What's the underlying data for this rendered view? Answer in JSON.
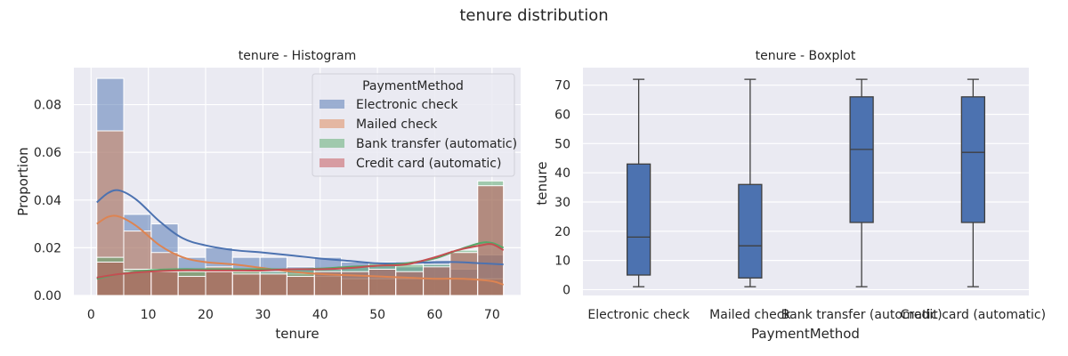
{
  "suptitle": "tenure distribution",
  "chart_data": [
    {
      "type": "histogram",
      "title": "tenure - Histogram",
      "xlabel": "tenure",
      "ylabel": "Proportion",
      "xlim": [
        -3,
        75
      ],
      "ylim": [
        0,
        0.0955
      ],
      "xticks": [
        0,
        10,
        20,
        30,
        40,
        50,
        60,
        70
      ],
      "yticks": [
        0,
        0.02,
        0.04,
        0.06,
        0.08
      ],
      "ytick_labels": [
        "0.00",
        "0.02",
        "0.04",
        "0.06",
        "0.08"
      ],
      "grid": true,
      "bin_edges": [
        1,
        5.7,
        10.5,
        15.2,
        20,
        24.7,
        29.5,
        34.2,
        39,
        43.7,
        48.5,
        53.2,
        58,
        62.7,
        67.5,
        72
      ],
      "legend": {
        "title": "PaymentMethod",
        "placement": "upper right"
      },
      "series": [
        {
          "name": "Electronic check",
          "color": "#4c72b0",
          "values": [
            0.091,
            0.034,
            0.03,
            0.016,
            0.02,
            0.016,
            0.016,
            0.012,
            0.016,
            0.014,
            0.013,
            0.012,
            0.014,
            0.011,
            0.017
          ],
          "kde": [
            [
              1,
              0.039
            ],
            [
              3,
              0.043
            ],
            [
              5,
              0.044
            ],
            [
              8,
              0.04
            ],
            [
              12,
              0.031
            ],
            [
              16,
              0.024
            ],
            [
              20,
              0.021
            ],
            [
              25,
              0.019
            ],
            [
              30,
              0.018
            ],
            [
              35,
              0.0168
            ],
            [
              40,
              0.0155
            ],
            [
              45,
              0.0145
            ],
            [
              50,
              0.0135
            ],
            [
              55,
              0.0135
            ],
            [
              60,
              0.014
            ],
            [
              64,
              0.014
            ],
            [
              68,
              0.0135
            ],
            [
              72,
              0.013
            ]
          ]
        },
        {
          "name": "Mailed check",
          "color": "#dd8452",
          "values": [
            0.069,
            0.027,
            0.018,
            0.01,
            0.012,
            0.011,
            0.009,
            0.009,
            0.008,
            0.007,
            0.007,
            0.007,
            0.007,
            0.007,
            0.007
          ],
          "kde": [
            [
              1,
              0.03
            ],
            [
              3,
              0.033
            ],
            [
              5,
              0.033
            ],
            [
              8,
              0.029
            ],
            [
              12,
              0.021
            ],
            [
              16,
              0.016
            ],
            [
              20,
              0.014
            ],
            [
              25,
              0.013
            ],
            [
              30,
              0.0115
            ],
            [
              35,
              0.01
            ],
            [
              40,
              0.009
            ],
            [
              45,
              0.0085
            ],
            [
              50,
              0.008
            ],
            [
              55,
              0.0075
            ],
            [
              60,
              0.007
            ],
            [
              65,
              0.007
            ],
            [
              70,
              0.006
            ],
            [
              72,
              0.0045
            ]
          ]
        },
        {
          "name": "Bank transfer (automatic)",
          "color": "#55a868",
          "values": [
            0.016,
            0.011,
            0.011,
            0.01,
            0.01,
            0.01,
            0.01,
            0.011,
            0.011,
            0.012,
            0.014,
            0.013,
            0.013,
            0.019,
            0.048
          ],
          "kde": [
            [
              1,
              0.007
            ],
            [
              5,
              0.009
            ],
            [
              10,
              0.0105
            ],
            [
              15,
              0.011
            ],
            [
              20,
              0.011
            ],
            [
              25,
              0.011
            ],
            [
              30,
              0.011
            ],
            [
              35,
              0.011
            ],
            [
              40,
              0.0113
            ],
            [
              45,
              0.012
            ],
            [
              50,
              0.0125
            ],
            [
              55,
              0.0135
            ],
            [
              60,
              0.0155
            ],
            [
              64,
              0.019
            ],
            [
              68,
              0.022
            ],
            [
              70,
              0.022
            ],
            [
              72,
              0.02
            ]
          ]
        },
        {
          "name": "Credit card (automatic)",
          "color": "#c44e52",
          "values": [
            0.014,
            0.01,
            0.01,
            0.008,
            0.01,
            0.009,
            0.009,
            0.008,
            0.01,
            0.01,
            0.011,
            0.01,
            0.012,
            0.018,
            0.046
          ],
          "kde": [
            [
              1,
              0.0075
            ],
            [
              5,
              0.009
            ],
            [
              10,
              0.01
            ],
            [
              15,
              0.0105
            ],
            [
              20,
              0.0105
            ],
            [
              25,
              0.0105
            ],
            [
              30,
              0.0105
            ],
            [
              35,
              0.011
            ],
            [
              40,
              0.011
            ],
            [
              45,
              0.0115
            ],
            [
              50,
              0.0125
            ],
            [
              55,
              0.013
            ],
            [
              60,
              0.016
            ],
            [
              64,
              0.019
            ],
            [
              68,
              0.021
            ],
            [
              70,
              0.0215
            ],
            [
              72,
              0.019
            ]
          ]
        }
      ]
    },
    {
      "type": "boxplot",
      "title": "tenure - Boxplot",
      "xlabel": "PaymentMethod",
      "ylabel": "tenure",
      "ylim": [
        -2,
        76
      ],
      "yticks": [
        0,
        10,
        20,
        30,
        40,
        50,
        60,
        70
      ],
      "grid": true,
      "color": "#4c72b0",
      "categories": [
        "Electronic check",
        "Mailed check",
        "Bank transfer (automatic)",
        "Credit card (automatic)"
      ],
      "boxes": [
        {
          "min": 1,
          "q1": 5,
          "median": 18,
          "q3": 43,
          "max": 72
        },
        {
          "min": 1,
          "q1": 4,
          "median": 15,
          "q3": 36,
          "max": 72
        },
        {
          "min": 1,
          "q1": 23,
          "median": 48,
          "q3": 66,
          "max": 72
        },
        {
          "min": 1,
          "q1": 23,
          "median": 47,
          "q3": 66,
          "max": 72
        }
      ]
    }
  ]
}
